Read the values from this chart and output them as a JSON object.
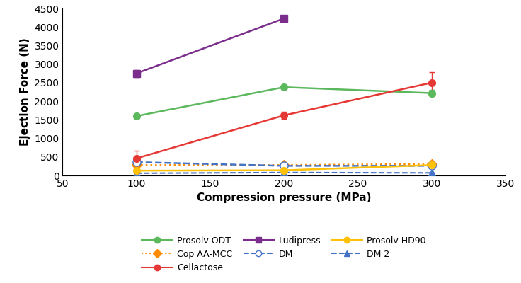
{
  "x": [
    100,
    200,
    300
  ],
  "series": [
    {
      "name": "Prosolv ODT",
      "y": [
        1600,
        2380,
        2220
      ],
      "yerr": [
        40,
        40,
        80
      ],
      "color": "#5CB85C",
      "linestyle": "-",
      "marker": "o",
      "markersize": 7,
      "linewidth": 1.8,
      "markerfacecolor": "#5CB85C"
    },
    {
      "name": "Ludipress",
      "y": [
        2750,
        4230,
        null
      ],
      "yerr": [
        100,
        70,
        null
      ],
      "color": "#7B2D8B",
      "linestyle": "-",
      "marker": "s",
      "markersize": 7,
      "linewidth": 1.8,
      "markerfacecolor": "#7B2D8B"
    },
    {
      "name": "DM 2",
      "y": [
        60,
        80,
        70
      ],
      "yerr": [
        0,
        0,
        0
      ],
      "color": "#4472C4",
      "linestyle": "--",
      "marker": "^",
      "markersize": 7,
      "linewidth": 1.5,
      "markerfacecolor": "#4472C4"
    },
    {
      "name": "Cop AA-MCC",
      "y": [
        280,
        280,
        310
      ],
      "yerr": [
        0,
        0,
        0
      ],
      "color": "#FF8C00",
      "linestyle": ":",
      "marker": "D",
      "markersize": 7,
      "linewidth": 1.8,
      "markerfacecolor": "#FF8C00"
    },
    {
      "name": "DM",
      "y": [
        360,
        260,
        260
      ],
      "yerr": [
        0,
        0,
        0
      ],
      "color": "#4472C4",
      "linestyle": "--",
      "marker": "o",
      "markersize": 8,
      "linewidth": 1.8,
      "markerfacecolor": "white"
    },
    {
      "name": "Cellactose",
      "y": [
        460,
        1620,
        2500
      ],
      "yerr": [
        200,
        100,
        280
      ],
      "color": "#E53935",
      "linestyle": "-",
      "marker": "o",
      "markersize": 7,
      "linewidth": 1.8,
      "markerfacecolor": "#E53935"
    },
    {
      "name": "Prosolv HD90",
      "y": [
        130,
        140,
        280
      ],
      "yerr": [
        0,
        0,
        0
      ],
      "color": "#FFC107",
      "linestyle": "-",
      "marker": "o",
      "markersize": 7,
      "linewidth": 1.8,
      "markerfacecolor": "#FFC107"
    }
  ],
  "legend": [
    {
      "name": "Prosolv ODT",
      "color": "#5CB85C",
      "linestyle": "-",
      "marker": "o",
      "markerfacecolor": "#5CB85C"
    },
    {
      "name": "Cop AA-MCC",
      "color": "#FF8C00",
      "linestyle": ":",
      "marker": "D",
      "markerfacecolor": "#FF8C00"
    },
    {
      "name": "Cellactose",
      "color": "#E53935",
      "linestyle": "-",
      "marker": "o",
      "markerfacecolor": "#E53935"
    },
    {
      "name": "Ludipress",
      "color": "#7B2D8B",
      "linestyle": "-",
      "marker": "s",
      "markerfacecolor": "#7B2D8B"
    },
    {
      "name": "DM",
      "color": "#4472C4",
      "linestyle": "--",
      "marker": "o",
      "markerfacecolor": "white"
    },
    {
      "name": "Prosolv HD90",
      "color": "#FFC107",
      "linestyle": "-",
      "marker": "o",
      "markerfacecolor": "#FFC107"
    },
    {
      "name": "DM 2",
      "color": "#4472C4",
      "linestyle": "--",
      "marker": "^",
      "markerfacecolor": "#4472C4"
    }
  ],
  "xlabel": "Compression pressure (MPa)",
  "ylabel": "Ejection Force (N)",
  "xlim": [
    50,
    350
  ],
  "ylim": [
    0,
    4500
  ],
  "yticks": [
    0,
    500,
    1000,
    1500,
    2000,
    2500,
    3000,
    3500,
    4000,
    4500
  ],
  "xticks": [
    50,
    100,
    150,
    200,
    250,
    300,
    350
  ]
}
